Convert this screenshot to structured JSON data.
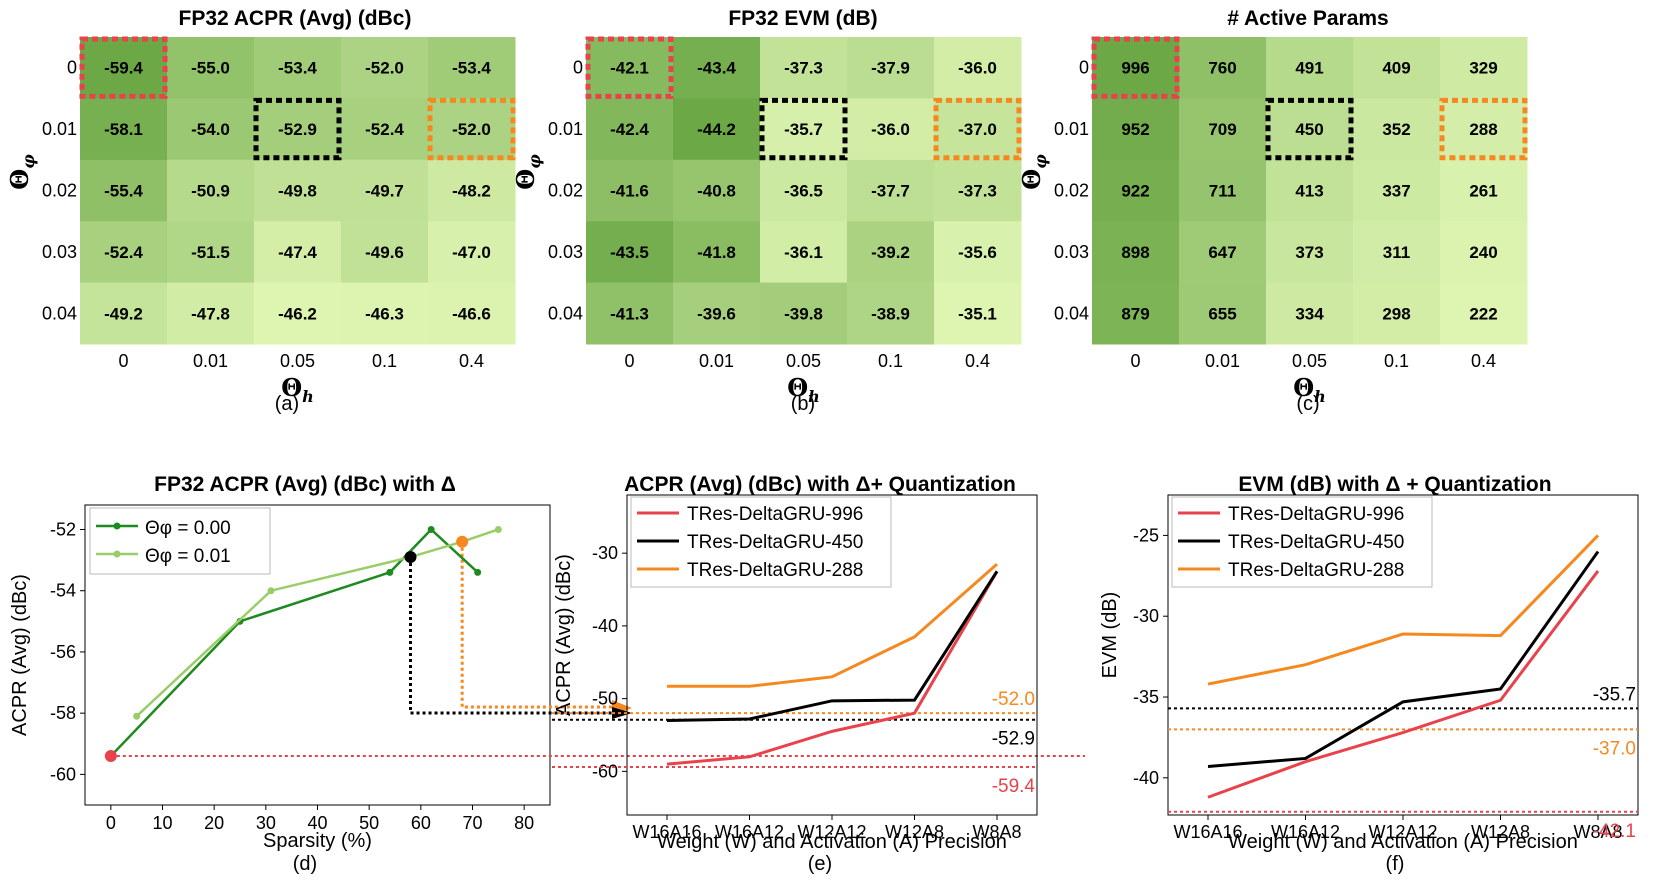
{
  "chart_data": [
    {
      "type": "heatmap",
      "title": "FP32 ACPR (Avg) (dBc)",
      "xlabel": "Θh",
      "ylabel": "Θφ",
      "x_categories": [
        "0",
        "0.01",
        "0.05",
        "0.1",
        "0.4"
      ],
      "y_categories": [
        "0",
        "0.01",
        "0.02",
        "0.03",
        "0.04"
      ],
      "values": [
        [
          -59.4,
          -55.0,
          -53.4,
          -52.0,
          -53.4
        ],
        [
          -58.1,
          -54.0,
          -52.9,
          -52.4,
          -52.0
        ],
        [
          -55.4,
          -50.9,
          -49.8,
          -49.7,
          -48.2
        ],
        [
          -52.4,
          -51.5,
          -47.4,
          -49.6,
          -47.0
        ],
        [
          -49.2,
          -47.8,
          -46.2,
          -46.3,
          -46.6
        ]
      ],
      "labels": [
        [
          "-59.4",
          "-55.0",
          "-53.4",
          "-52.0",
          "-53.4"
        ],
        [
          "-58.1",
          "-54.0",
          "-52.9",
          "-52.4",
          "-52.0"
        ],
        [
          "-55.4",
          "-50.9",
          "-49.8",
          "-49.7",
          "-48.2"
        ],
        [
          "-52.4",
          "-51.5",
          "-47.4",
          "-49.6",
          "-47.0"
        ],
        [
          "-49.2",
          "-47.8",
          "-46.2",
          "-46.3",
          "-46.6"
        ]
      ],
      "highlights": [
        {
          "row": 0,
          "col": 0,
          "color": "#e8434c"
        },
        {
          "row": 1,
          "col": 2,
          "color": "#000000"
        },
        {
          "row": 1,
          "col": 4,
          "color": "#f5891f"
        }
      ],
      "invert": false,
      "caption": "(a)"
    },
    {
      "type": "heatmap",
      "title": "FP32 EVM (dB)",
      "xlabel": "Θh",
      "ylabel": "Θφ",
      "x_categories": [
        "0",
        "0.01",
        "0.05",
        "0.1",
        "0.4"
      ],
      "y_categories": [
        "0",
        "0.01",
        "0.02",
        "0.03",
        "0.04"
      ],
      "values": [
        [
          -42.1,
          -43.4,
          -37.3,
          -37.9,
          -36.0
        ],
        [
          -42.4,
          -44.2,
          -35.7,
          -36.0,
          -37.0
        ],
        [
          -41.6,
          -40.8,
          -36.5,
          -37.7,
          -37.3
        ],
        [
          -43.5,
          -41.8,
          -36.1,
          -39.2,
          -35.6
        ],
        [
          -41.3,
          -39.6,
          -39.8,
          -38.9,
          -35.1
        ]
      ],
      "labels": [
        [
          "-42.1",
          "-43.4",
          "-37.3",
          "-37.9",
          "-36.0"
        ],
        [
          "-42.4",
          "-44.2",
          "-35.7",
          "-36.0",
          "-37.0"
        ],
        [
          "-41.6",
          "-40.8",
          "-36.5",
          "-37.7",
          "-37.3"
        ],
        [
          "-43.5",
          "-41.8",
          "-36.1",
          "-39.2",
          "-35.6"
        ],
        [
          "-41.3",
          "-39.6",
          "-39.8",
          "-38.9",
          "-35.1"
        ]
      ],
      "highlights": [
        {
          "row": 0,
          "col": 0,
          "color": "#e8434c"
        },
        {
          "row": 1,
          "col": 2,
          "color": "#000000"
        },
        {
          "row": 1,
          "col": 4,
          "color": "#f5891f"
        }
      ],
      "invert": false,
      "caption": "(b)"
    },
    {
      "type": "heatmap",
      "title": "# Active Params",
      "xlabel": "Θh",
      "ylabel": "Θφ",
      "x_categories": [
        "0",
        "0.01",
        "0.05",
        "0.1",
        "0.4"
      ],
      "y_categories": [
        "0",
        "0.01",
        "0.02",
        "0.03",
        "0.04"
      ],
      "values": [
        [
          996,
          760,
          491,
          409,
          329
        ],
        [
          952,
          709,
          450,
          352,
          288
        ],
        [
          922,
          711,
          413,
          337,
          261
        ],
        [
          898,
          647,
          373,
          311,
          240
        ],
        [
          879,
          655,
          334,
          298,
          222
        ]
      ],
      "labels": [
        [
          "996",
          "760",
          "491",
          "409",
          "329"
        ],
        [
          "952",
          "709",
          "450",
          "352",
          "288"
        ],
        [
          "922",
          "711",
          "413",
          "337",
          "261"
        ],
        [
          "898",
          "647",
          "373",
          "311",
          "240"
        ],
        [
          "879",
          "655",
          "334",
          "298",
          "222"
        ]
      ],
      "highlights": [
        {
          "row": 0,
          "col": 0,
          "color": "#e8434c"
        },
        {
          "row": 1,
          "col": 2,
          "color": "#000000"
        },
        {
          "row": 1,
          "col": 4,
          "color": "#f5891f"
        }
      ],
      "invert": true,
      "caption": "(c)"
    },
    {
      "type": "line",
      "title": "FP32 ACPR (Avg) (dBc) with Δ",
      "xlabel": "Sparsity (%)",
      "ylabel": "ACPR (Avg) (dBc)",
      "xlim": [
        -5,
        85
      ],
      "ylim": [
        -61,
        -51.2
      ],
      "xticks": [
        0,
        10,
        20,
        30,
        40,
        50,
        60,
        70,
        80
      ],
      "yticks": [
        -60,
        -58,
        -56,
        -54,
        -52
      ],
      "legend_position": "top-left",
      "series": [
        {
          "name": "Θφ = 0.00",
          "color": "#1f8a1f",
          "x": [
            0,
            25,
            54,
            62,
            71
          ],
          "y": [
            -59.4,
            -55.0,
            -53.4,
            -52.0,
            -53.4
          ]
        },
        {
          "name": "Θφ = 0.01",
          "color": "#9acd6a",
          "x": [
            5,
            31,
            58,
            68,
            75
          ],
          "y": [
            -58.1,
            -54.0,
            -52.9,
            -52.4,
            -52.0
          ]
        }
      ],
      "highlights": [
        {
          "x": 0,
          "y": -59.4,
          "color": "#e8434c"
        },
        {
          "x": 58,
          "y": -52.9,
          "color": "#000000"
        },
        {
          "x": 68,
          "y": -52.4,
          "color": "#f5891f"
        }
      ],
      "caption": "(d)"
    },
    {
      "type": "line",
      "title": "ACPR (Avg) (dBc) with Δ+ Quantization",
      "xlabel": "Weight (W) and Activation (A) Precision",
      "ylabel": "ACPR (Avg) (dBc)",
      "categories": [
        "W16A16",
        "W16A12",
        "W12A12",
        "W12A8",
        "W8A8"
      ],
      "ylim": [
        -66,
        -22
      ],
      "yticks": [
        -60,
        -50,
        -40,
        -30
      ],
      "legend_position": "top-left",
      "series": [
        {
          "name": "TRes-DeltaGRU-996",
          "color": "#e8434c",
          "values": [
            -59.0,
            -58.0,
            -54.5,
            -52.0,
            -32.5
          ]
        },
        {
          "name": "TRes-DeltaGRU-450",
          "color": "#000000",
          "values": [
            -53.0,
            -52.8,
            -50.3,
            -50.2,
            -32.5
          ]
        },
        {
          "name": "TRes-DeltaGRU-288",
          "color": "#f5891f",
          "values": [
            -48.3,
            -48.3,
            -47.0,
            -41.5,
            -31.5
          ]
        }
      ],
      "reference_lines": [
        {
          "value": -52.0,
          "label": "-52.0",
          "color": "#f5891f"
        },
        {
          "value": -52.9,
          "label": "-52.9",
          "color": "#000000"
        },
        {
          "value": -59.4,
          "label": "-59.4",
          "color": "#e8434c"
        }
      ],
      "caption": "(e)"
    },
    {
      "type": "line",
      "title": "EVM (dB) with Δ + Quantization",
      "xlabel": "Weight (W) and Activation (A) Precision",
      "ylabel": "EVM (dB)",
      "categories": [
        "W16A16",
        "W16A12",
        "W12A12",
        "W12A8",
        "W8A8"
      ],
      "ylim": [
        -42.3,
        -22.5
      ],
      "yticks": [
        -40,
        -35,
        -30,
        -25
      ],
      "legend_position": "top-left",
      "series": [
        {
          "name": "TRes-DeltaGRU-996",
          "color": "#e8434c",
          "values": [
            -41.2,
            -39.0,
            -37.2,
            -35.2,
            -27.2
          ]
        },
        {
          "name": "TRes-DeltaGRU-450",
          "color": "#000000",
          "values": [
            -39.3,
            -38.8,
            -35.3,
            -34.5,
            -26.0
          ]
        },
        {
          "name": "TRes-DeltaGRU-288",
          "color": "#f5891f",
          "values": [
            -34.2,
            -33.0,
            -31.1,
            -31.2,
            -25.0
          ]
        }
      ],
      "reference_lines": [
        {
          "value": -35.7,
          "label": "-35.7",
          "color": "#000000"
        },
        {
          "value": -37.0,
          "label": "-37.0",
          "color": "#f5891f"
        },
        {
          "value": -42.1,
          "label": "-42.1",
          "color": "#e8434c"
        }
      ],
      "caption": "(f)"
    }
  ]
}
